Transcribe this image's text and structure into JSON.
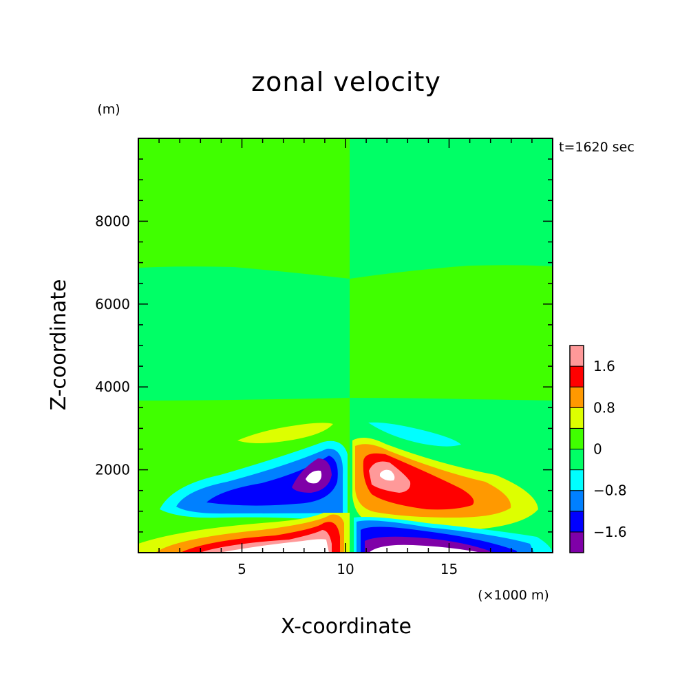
{
  "chart_data": {
    "type": "heatmap",
    "title": "zonal velocity",
    "xlabel": "X-coordinate",
    "ylabel": "Z-coordinate",
    "x_unit": "(×1000 m)",
    "y_unit": "(m)",
    "annotation": "t=1620 sec",
    "xlim": [
      0,
      20
    ],
    "ylim": [
      0,
      10000
    ],
    "x_ticks": [
      5,
      10,
      15
    ],
    "x_tick_labels": [
      "5",
      "10",
      "15"
    ],
    "y_ticks": [
      2000,
      4000,
      6000,
      8000
    ],
    "y_tick_labels": [
      "2000",
      "4000",
      "6000",
      "8000"
    ],
    "colorbar": {
      "levels": [
        -2.0,
        -1.6,
        -1.2,
        -0.8,
        -0.4,
        0,
        0.4,
        0.8,
        1.2,
        1.6,
        2.0
      ],
      "tick_values": [
        -1.6,
        -0.8,
        0,
        0.8,
        1.6
      ],
      "tick_labels": [
        "−1.6",
        "−0.8",
        "0",
        "0.8",
        "1.6"
      ],
      "colors": [
        "#7f00a8",
        "#0000ff",
        "#0080ff",
        "#00ffff",
        "#00ff66",
        "#40ff00",
        "#ddff00",
        "#ff9900",
        "#ff0000",
        "#ff9999"
      ],
      "under_color": "#ffffff",
      "over_color": "#ffffff"
    },
    "field": {
      "description_levels": "values are zonal velocity contour bands",
      "features": [
        {
          "x": 8.7,
          "z": 1800,
          "value": -2.0
        },
        {
          "x": 11.8,
          "z": 1850,
          "value": 2.0
        },
        {
          "x": 6.5,
          "z": 1300,
          "value": -1.2
        },
        {
          "x": 14.5,
          "z": 1300,
          "value": 1.2
        },
        {
          "x": 6.0,
          "z": 50,
          "value": 2.0
        },
        {
          "x": 14.0,
          "z": 50,
          "value": -2.0
        },
        {
          "x": 7.5,
          "z": 2900,
          "value": 0.5
        },
        {
          "x": 12.5,
          "z": 2900,
          "value": -0.5
        }
      ]
    }
  }
}
